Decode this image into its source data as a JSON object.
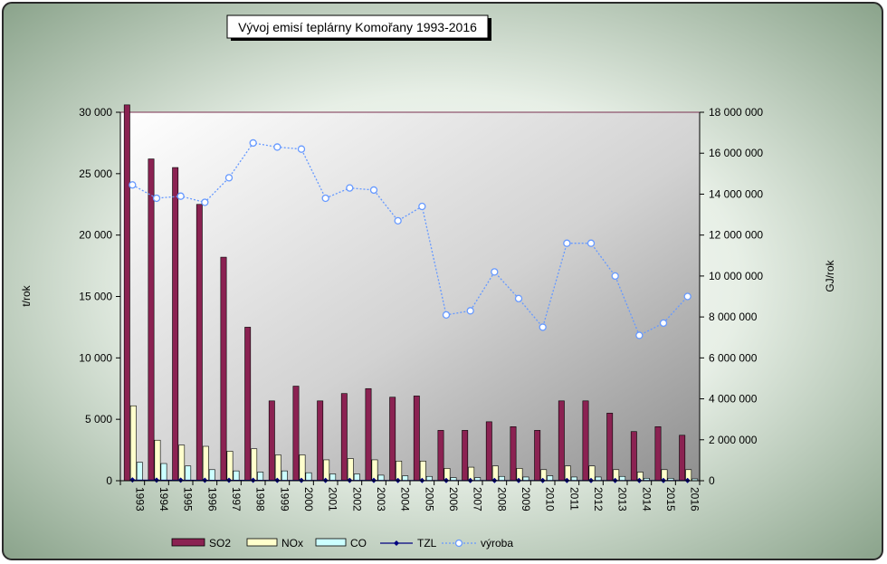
{
  "chart_data": {
    "type": "bar",
    "title": "Vývoj emisí teplárny Komořany 1993-2016",
    "ylabel": "t/rok",
    "y2label": "GJ/rok",
    "ylim": [
      0,
      30000
    ],
    "y2lim": [
      0,
      18000000
    ],
    "yticks": [
      "0",
      "5 000",
      "10 000",
      "15 000",
      "20 000",
      "25 000",
      "30 000"
    ],
    "y2ticks": [
      "0",
      "2 000 000",
      "4 000 000",
      "6 000 000",
      "8 000 000",
      "10 000 000",
      "12 000 000",
      "14 000 000",
      "16 000 000",
      "18 000 000"
    ],
    "grid": false,
    "legend": "bottom",
    "categories": [
      "1993",
      "1994",
      "1995",
      "1996",
      "1997",
      "1998",
      "1999",
      "2000",
      "2001",
      "2002",
      "2003",
      "2004",
      "2005",
      "2006",
      "2007",
      "2008",
      "2009",
      "2010",
      "2011",
      "2012",
      "2013",
      "2014",
      "2015",
      "2016"
    ],
    "series": [
      {
        "name": "SO2",
        "kind": "bar",
        "axis": "left",
        "color": "#8b2252",
        "values": [
          30600,
          26200,
          25500,
          22500,
          18200,
          12500,
          6500,
          7700,
          6500,
          7100,
          7500,
          6800,
          6900,
          4100,
          4100,
          4800,
          4400,
          4100,
          6500,
          6500,
          5500,
          4000,
          4400,
          3700
        ]
      },
      {
        "name": "NOx",
        "kind": "bar",
        "axis": "left",
        "color": "#ffffcc",
        "values": [
          6100,
          3300,
          2900,
          2800,
          2400,
          2600,
          2100,
          2100,
          1700,
          1800,
          1700,
          1600,
          1600,
          1000,
          1100,
          1200,
          1000,
          900,
          1200,
          1200,
          900,
          700,
          900,
          900
        ]
      },
      {
        "name": "CO",
        "kind": "bar",
        "axis": "left",
        "color": "#ccffff",
        "values": [
          1500,
          1400,
          1200,
          900,
          800,
          700,
          800,
          650,
          550,
          550,
          450,
          400,
          350,
          250,
          250,
          350,
          300,
          400,
          300,
          300,
          350,
          200,
          200,
          150
        ]
      },
      {
        "name": "TZL",
        "kind": "line",
        "axis": "left",
        "color": "#000080",
        "values": [
          60,
          50,
          50,
          40,
          40,
          40,
          30,
          30,
          30,
          30,
          30,
          20,
          20,
          20,
          20,
          20,
          20,
          20,
          20,
          20,
          20,
          20,
          20,
          20
        ]
      },
      {
        "name": "výroba",
        "kind": "line",
        "axis": "right",
        "color": "#6699ff",
        "values": [
          14450000,
          13800000,
          13900000,
          13600000,
          14800000,
          16500000,
          16300000,
          16200000,
          13800000,
          14300000,
          14200000,
          12700000,
          13400000,
          8100000,
          8300000,
          10200000,
          8900000,
          7500000,
          11600000,
          11600000,
          10000000,
          7100000,
          7700000,
          9000000
        ]
      }
    ]
  }
}
